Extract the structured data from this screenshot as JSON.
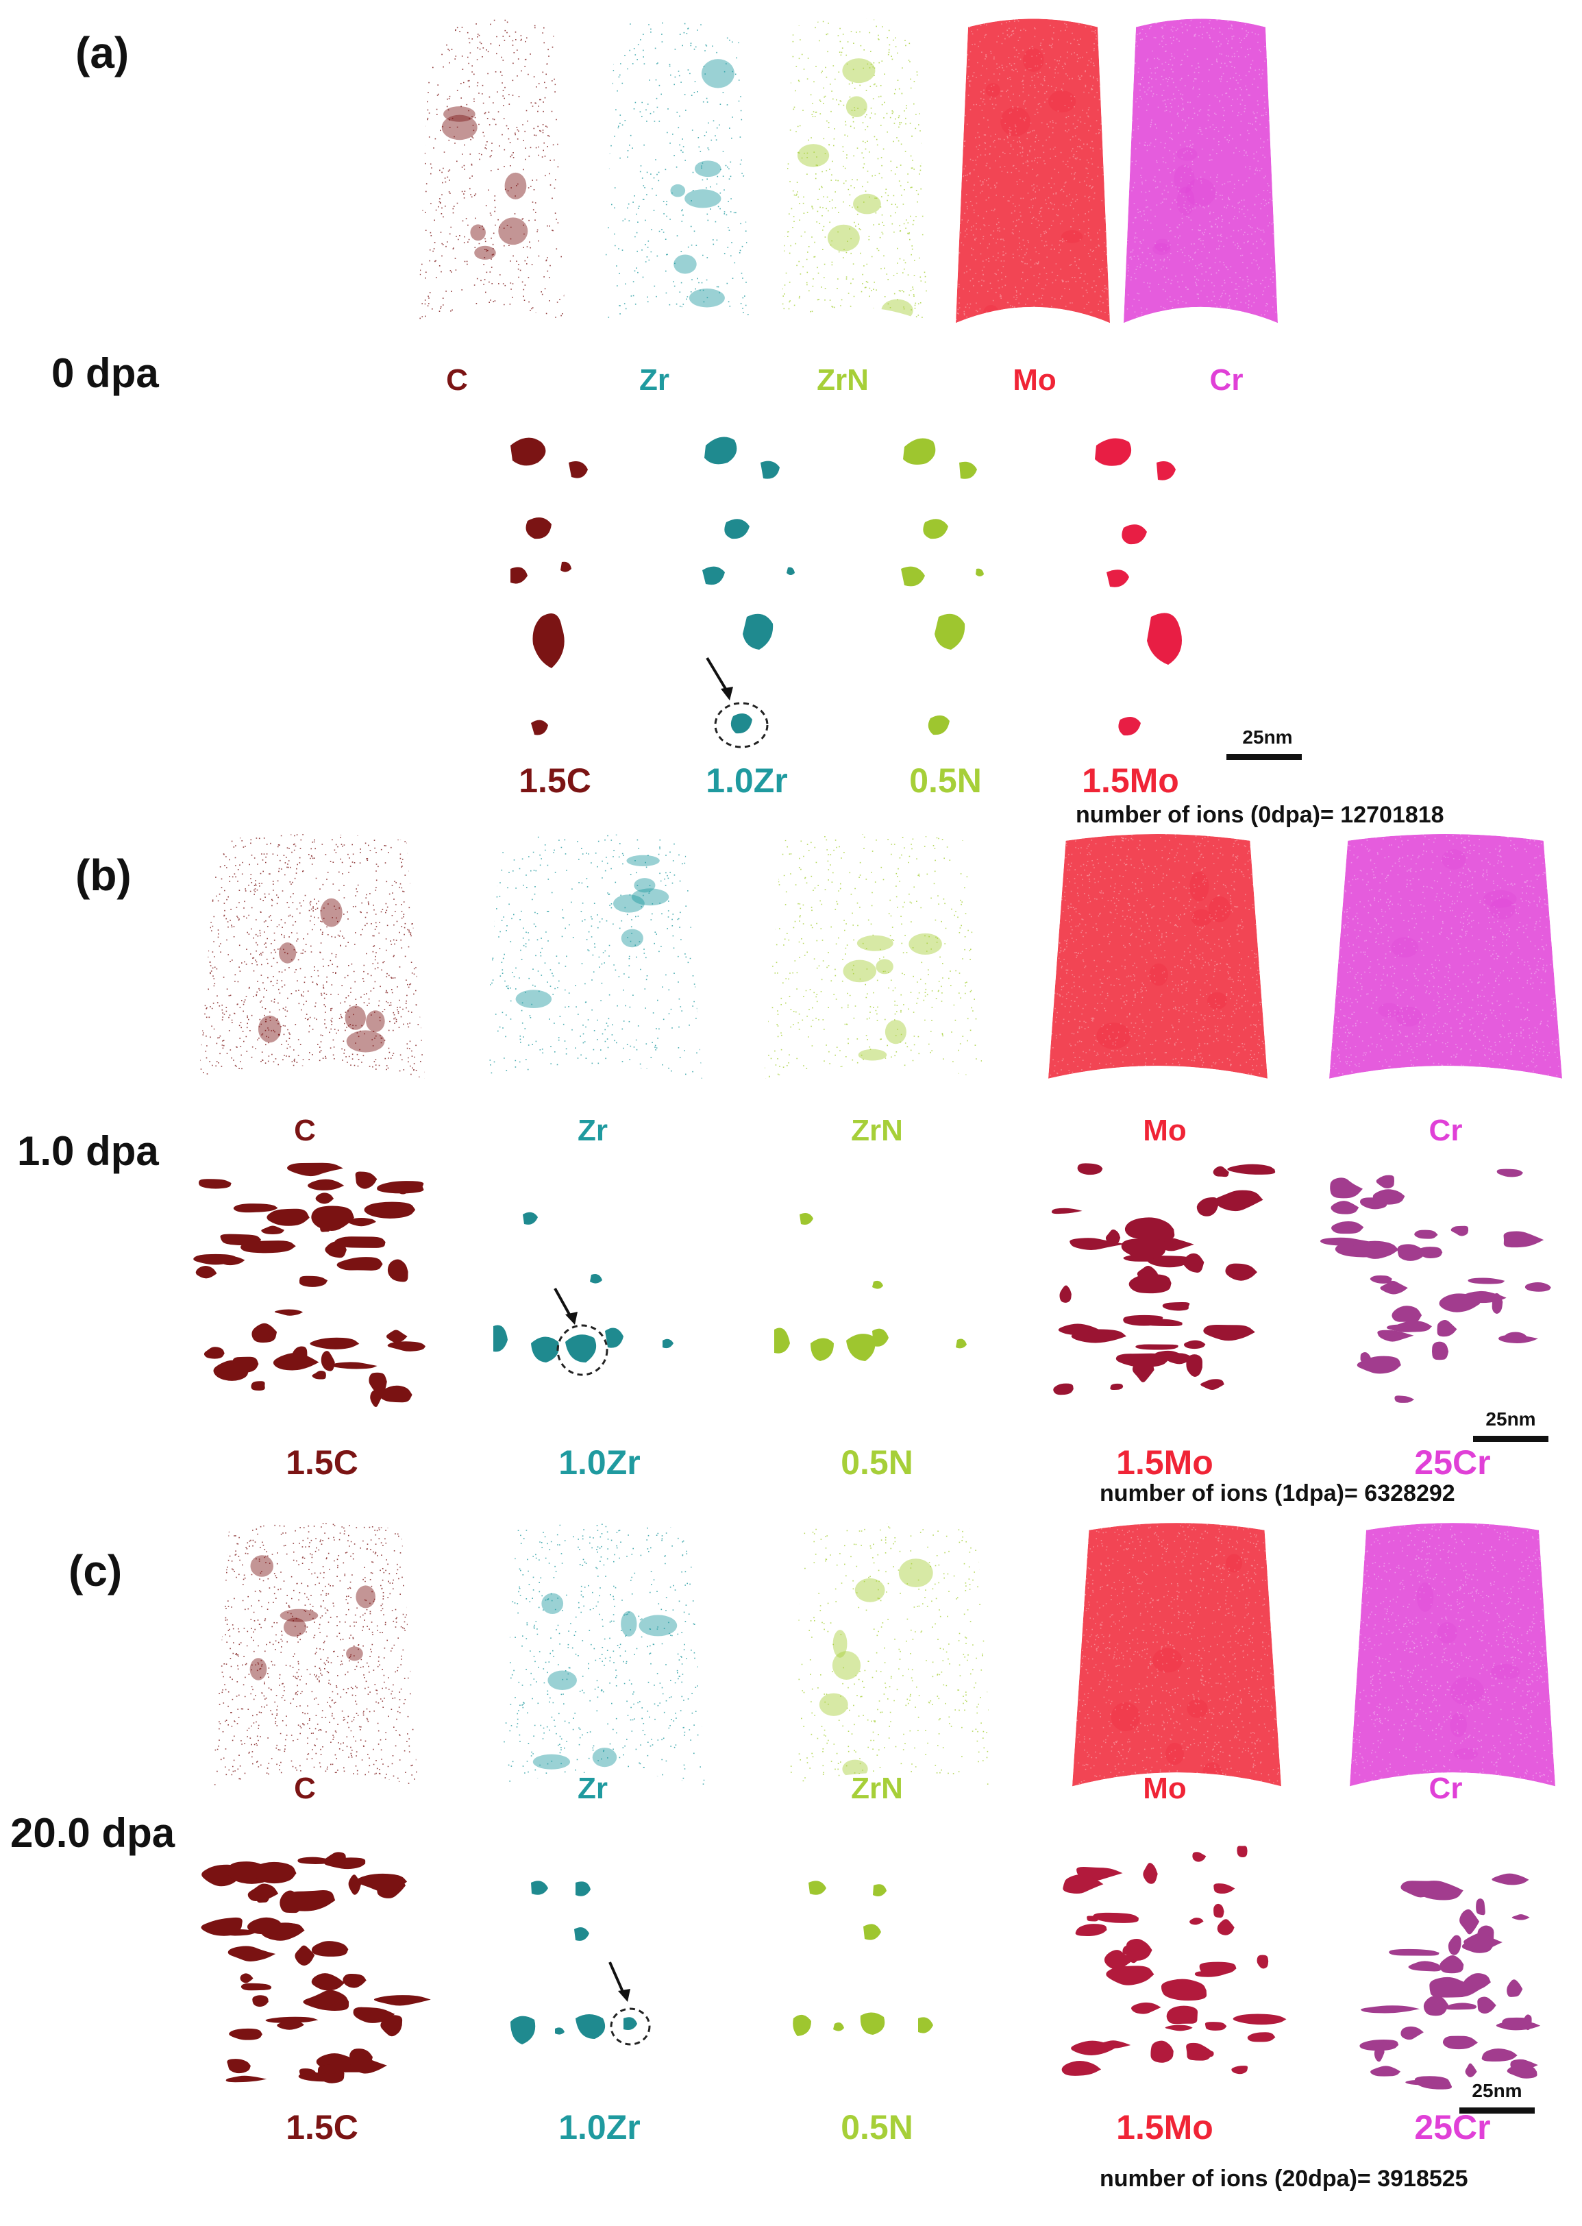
{
  "colors": {
    "C": "#7b1414",
    "Zr": "#1f9a9f",
    "ZrN": "#a6cf38",
    "Mo": "#f02436",
    "Cr": "#e040d7"
  },
  "panels": [
    {
      "label": "(a)",
      "dose": "0 dpa",
      "element_labels": [
        "C",
        "Zr",
        "ZrN",
        "Mo",
        "Cr"
      ],
      "iso_labels": [
        "1.5C",
        "1.0Zr",
        "0.5N",
        "1.5Mo"
      ],
      "scale": "25nm",
      "ion_count": "number of ions (0dpa)= 12701818"
    },
    {
      "label": "(b)",
      "dose": "1.0 dpa",
      "element_labels": [
        "C",
        "Zr",
        "ZrN",
        "Mo",
        "Cr"
      ],
      "iso_labels": [
        "1.5C",
        "1.0Zr",
        "0.5N",
        "1.5Mo",
        "25Cr"
      ],
      "scale": "25nm",
      "ion_count": "number of ions (1dpa)= 6328292"
    },
    {
      "label": "(c)",
      "dose": "20.0 dpa",
      "element_labels": [
        "C",
        "Zr",
        "ZrN",
        "Mo",
        "Cr"
      ],
      "iso_labels": [
        "1.5C",
        "1.0Zr",
        "0.5N",
        "1.5Mo",
        "25Cr"
      ],
      "scale": "25nm",
      "ion_count": "number of ions (20dpa)= 3918525"
    }
  ]
}
